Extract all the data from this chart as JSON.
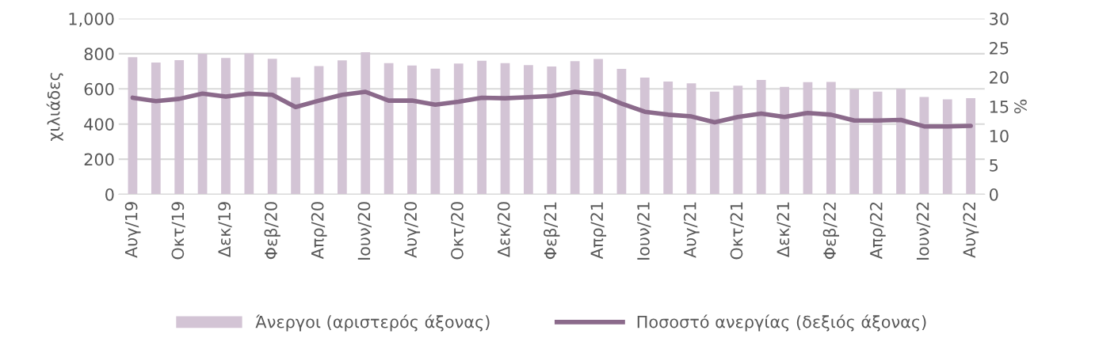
{
  "chart_data": {
    "type": "bar",
    "categories": [
      "Αυγ/19",
      null,
      "Οκτ/19",
      null,
      "Δεκ/19",
      null,
      "Φεβ/20",
      null,
      "Απρ/20",
      null,
      "Ιουν/20",
      null,
      "Αυγ/20",
      null,
      "Οκτ/20",
      null,
      "Δεκ/20",
      null,
      "Φεβ/21",
      null,
      "Απρ/21",
      null,
      "Ιουν/21",
      null,
      "Αυγ/21",
      null,
      "Οκτ/21",
      null,
      "Δεκ/21",
      null,
      "Φεβ/22",
      null,
      "Απρ/22",
      null,
      "Ιουν/22",
      null,
      "Αυγ/22"
    ],
    "series": [
      {
        "name": "Άνεργοι (αριστερός άξονας)",
        "color": "#d3c4d5",
        "values": [
          780,
          750,
          763,
          800,
          776,
          802,
          771,
          665,
          730,
          762,
          808,
          747,
          733,
          715,
          744,
          760,
          747,
          735,
          727,
          758,
          770,
          714,
          664,
          642,
          632,
          585,
          618,
          651,
          612,
          638,
          640,
          598,
          584,
          600,
          554,
          540,
          547
        ]
      },
      {
        "name": "Ποσοστό ανεργίας (δεξιός άξονας)",
        "type": "line",
        "axis": "y2",
        "color": "#8b6a8b",
        "values": [
          16.5,
          15.9,
          16.3,
          17.2,
          16.7,
          17.2,
          17.0,
          14.9,
          16.0,
          17.0,
          17.5,
          16.0,
          16.0,
          15.3,
          15.8,
          16.5,
          16.4,
          16.6,
          16.8,
          17.5,
          17.1,
          15.5,
          14.1,
          13.6,
          13.3,
          12.3,
          13.2,
          13.8,
          13.2,
          13.9,
          13.6,
          12.6,
          12.6,
          12.7,
          11.6,
          11.6,
          11.7
        ]
      }
    ],
    "ylabel": "χιλιάδες",
    "y2label": "%",
    "ylim": [
      0,
      1000
    ],
    "yticks": [
      0,
      {
        "value": 200,
        "label": "200"
      },
      {
        "value": 400,
        "label": "400"
      },
      {
        "value": 600,
        "label": "600"
      },
      {
        "value": 800,
        "label": "800"
      },
      {
        "value": 1000,
        "label": "1,000"
      }
    ],
    "y2lim": [
      0,
      30
    ],
    "y2ticks": [
      0,
      5,
      10,
      15,
      20,
      25,
      30
    ],
    "grid": "y",
    "legend": "bottom",
    "marker": "none",
    "line_style": "solid"
  }
}
